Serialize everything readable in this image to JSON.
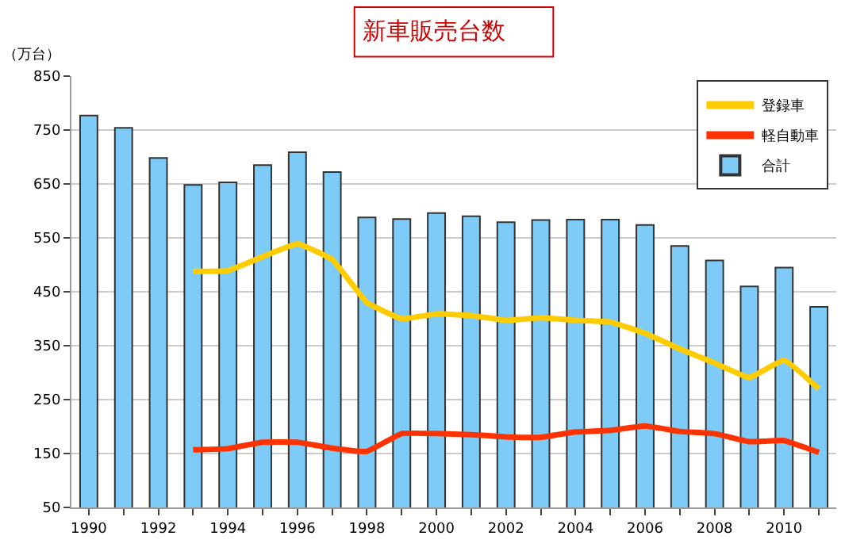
{
  "chart_data": {
    "type": "bar",
    "title": "新車販売台数",
    "ylabel": "（万台）",
    "x": [
      1990,
      1991,
      1992,
      1993,
      1994,
      1995,
      1996,
      1997,
      1998,
      1999,
      2000,
      2001,
      2002,
      2003,
      2004,
      2005,
      2006,
      2007,
      2008,
      2009,
      2010,
      2011
    ],
    "series": [
      {
        "name": "登録車",
        "type": "line",
        "color": "#ffcc00",
        "values": [
          null,
          null,
          null,
          488,
          489,
          515,
          539,
          510,
          430,
          400,
          409,
          406,
          397,
          402,
          397,
          394,
          373,
          344,
          318,
          291,
          323,
          270
        ]
      },
      {
        "name": "軽自動車",
        "type": "line",
        "color": "#ff3300",
        "values": [
          null,
          null,
          null,
          157,
          159,
          171,
          171,
          160,
          154,
          187,
          187,
          185,
          181,
          180,
          190,
          193,
          201,
          191,
          187,
          172,
          174,
          152
        ]
      },
      {
        "name": "合計",
        "color": "#7fcbf7",
        "values": [
          777,
          754,
          698,
          648,
          653,
          685,
          709,
          672,
          588,
          585,
          596,
          590,
          579,
          583,
          584,
          584,
          574,
          535,
          508,
          460,
          495,
          422
        ]
      }
    ],
    "xlim": [
      1989.5,
      2011.5
    ],
    "xticks": [
      1990,
      {
        "value": 1991,
        "label": null
      },
      1992,
      {
        "value": 1993,
        "label": null
      },
      1994,
      {
        "value": 1995,
        "label": null
      },
      1996,
      {
        "value": 1997,
        "label": null
      },
      1998,
      {
        "value": 1999,
        "label": null
      },
      2000,
      {
        "value": 2001,
        "label": null
      },
      2002,
      {
        "value": 2003,
        "label": null
      },
      2004,
      {
        "value": 2005,
        "label": null
      },
      2006,
      {
        "value": 2007,
        "label": null
      },
      2008,
      {
        "value": 2009,
        "label": null
      },
      2010,
      {
        "value": 2011,
        "label": null
      }
    ],
    "ylim": [
      50,
      850
    ],
    "yticks": [
      50,
      150,
      250,
      350,
      450,
      550,
      650,
      750,
      850
    ],
    "grid": "y",
    "legend": "top right",
    "marker": "none",
    "line_style": "solid"
  }
}
